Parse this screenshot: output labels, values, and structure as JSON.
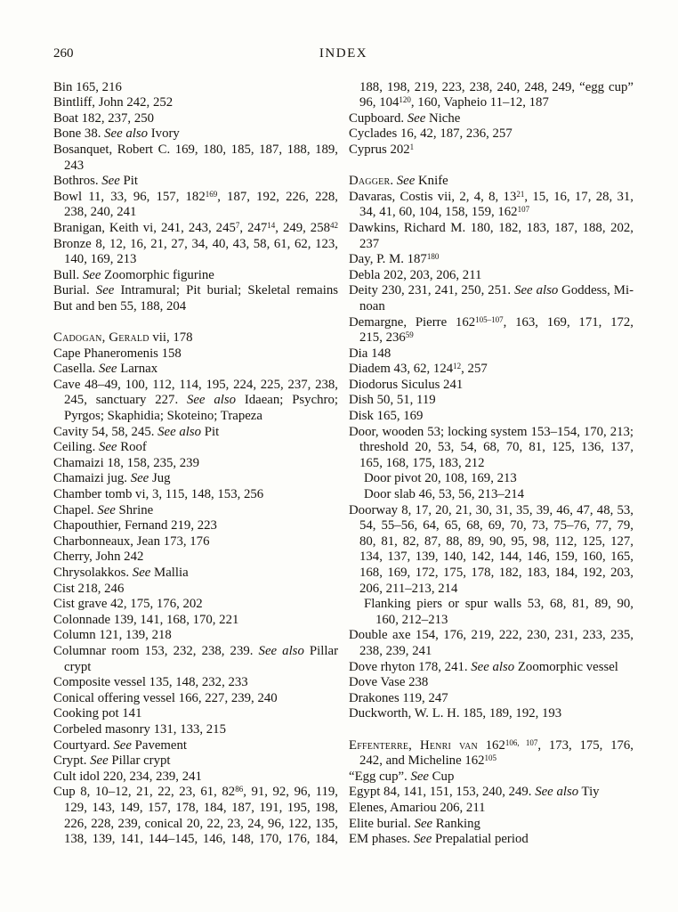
{
  "page": {
    "number": "260",
    "running_head": "INDEX"
  },
  "columns": {
    "left": [
      {
        "seg": [
          {
            "t": "Bin 165, 216"
          }
        ]
      },
      {
        "seg": [
          {
            "t": "Bintliff, John 242, 252"
          }
        ]
      },
      {
        "seg": [
          {
            "t": "Boat 182, 237, 250"
          }
        ]
      },
      {
        "seg": [
          {
            "t": "Bone 38. "
          },
          {
            "t": "See also",
            "s": "i"
          },
          {
            "t": " Ivory"
          }
        ]
      },
      {
        "j": true,
        "seg": [
          {
            "t": "Bosanquet, Robert C. 169, 180, 185, 187, 188, 189,"
          }
        ]
      },
      {
        "n": 1,
        "seg": [
          {
            "t": "243"
          }
        ]
      },
      {
        "seg": [
          {
            "t": "Bothros. "
          },
          {
            "t": "See",
            "s": "i"
          },
          {
            "t": " Pit"
          }
        ]
      },
      {
        "j": true,
        "seg": [
          {
            "t": "Bowl 11, 33, 96, 157, 182"
          },
          {
            "t": "169",
            "s": "p"
          },
          {
            "t": ", 187, 192, 226, 228,"
          }
        ]
      },
      {
        "n": 1,
        "seg": [
          {
            "t": "238, 240, 241"
          }
        ]
      },
      {
        "j": true,
        "seg": [
          {
            "t": "Branigan, Keith vi, 241, 243, 245"
          },
          {
            "t": "7",
            "s": "p"
          },
          {
            "t": ", 247"
          },
          {
            "t": "14",
            "s": "p"
          },
          {
            "t": ", 249, 258"
          },
          {
            "t": "42",
            "s": "p"
          }
        ]
      },
      {
        "j": true,
        "seg": [
          {
            "t": "Bronze 8, 12, 16, 21, 27, 34, 40, 43, 58, 61, 62, 123,"
          }
        ]
      },
      {
        "n": 1,
        "seg": [
          {
            "t": "140, 169, 213"
          }
        ]
      },
      {
        "seg": [
          {
            "t": "Bull. "
          },
          {
            "t": "See",
            "s": "i"
          },
          {
            "t": " Zoomorphic figurine"
          }
        ]
      },
      {
        "j": true,
        "seg": [
          {
            "t": "Burial. "
          },
          {
            "t": "See",
            "s": "i"
          },
          {
            "t": " Intramural; Pit burial; Skeletal remains"
          }
        ]
      },
      {
        "seg": [
          {
            "t": "But and ben 55, 188, 204"
          }
        ]
      },
      {
        "g": true,
        "seg": [
          {
            "t": "Cadogan, Gerald",
            "s": "c"
          },
          {
            "t": " vii, 178"
          }
        ]
      },
      {
        "seg": [
          {
            "t": "Cape Phaneromenis 158"
          }
        ]
      },
      {
        "seg": [
          {
            "t": "Casella. "
          },
          {
            "t": "See",
            "s": "i"
          },
          {
            "t": " Larnax"
          }
        ]
      },
      {
        "j": true,
        "seg": [
          {
            "t": "Cave 48–49, 100, 112, 114, 195, 224, 225, 237, 238,"
          }
        ]
      },
      {
        "n": 1,
        "j": true,
        "seg": [
          {
            "t": "245, sanctuary 227. "
          },
          {
            "t": "See also",
            "s": "i"
          },
          {
            "t": " Idaean; Psychro;"
          }
        ]
      },
      {
        "n": 1,
        "seg": [
          {
            "t": "Pyrgos; Skaphidia; Skoteino; Trapeza"
          }
        ]
      },
      {
        "seg": [
          {
            "t": "Cavity 54, 58, 245. "
          },
          {
            "t": "See also",
            "s": "i"
          },
          {
            "t": " Pit"
          }
        ]
      },
      {
        "seg": [
          {
            "t": "Ceiling. "
          },
          {
            "t": "See",
            "s": "i"
          },
          {
            "t": " Roof"
          }
        ]
      },
      {
        "seg": [
          {
            "t": "Chamaizi 18, 158, 235, 239"
          }
        ]
      },
      {
        "seg": [
          {
            "t": "Chamaizi jug. "
          },
          {
            "t": "See",
            "s": "i"
          },
          {
            "t": " Jug"
          }
        ]
      },
      {
        "seg": [
          {
            "t": "Chamber tomb vi, 3, 115, 148, 153, 256"
          }
        ]
      },
      {
        "seg": [
          {
            "t": "Chapel. "
          },
          {
            "t": "See",
            "s": "i"
          },
          {
            "t": " Shrine"
          }
        ]
      },
      {
        "seg": [
          {
            "t": "Chapouthier, Fernand 219, 223"
          }
        ]
      },
      {
        "seg": [
          {
            "t": "Charbonneaux, Jean 173, 176"
          }
        ]
      },
      {
        "seg": [
          {
            "t": "Cherry, John 242"
          }
        ]
      },
      {
        "seg": [
          {
            "t": "Chrysolakkos. "
          },
          {
            "t": "See",
            "s": "i"
          },
          {
            "t": " Mallia"
          }
        ]
      },
      {
        "seg": [
          {
            "t": "Cist 218, 246"
          }
        ]
      },
      {
        "seg": [
          {
            "t": "Cist grave 42, 175, 176, 202"
          }
        ]
      },
      {
        "seg": [
          {
            "t": "Colonnade 139, 141, 168, 170, 221"
          }
        ]
      },
      {
        "seg": [
          {
            "t": "Column 121, 139, 218"
          }
        ]
      },
      {
        "j": true,
        "seg": [
          {
            "t": "Columnar room 153, 232, 238, 239. "
          },
          {
            "t": "See also",
            "s": "i"
          },
          {
            "t": " Pillar"
          }
        ]
      },
      {
        "n": 1,
        "seg": [
          {
            "t": "crypt"
          }
        ]
      },
      {
        "seg": [
          {
            "t": "Composite vessel 135, 148, 232, 233"
          }
        ]
      },
      {
        "seg": [
          {
            "t": "Conical offering vessel 166, 227, 239, 240"
          }
        ]
      },
      {
        "seg": [
          {
            "t": "Cooking pot 141"
          }
        ]
      },
      {
        "seg": [
          {
            "t": "Corbeled masonry 131, 133, 215"
          }
        ]
      },
      {
        "seg": [
          {
            "t": "Courtyard. "
          },
          {
            "t": "See",
            "s": "i"
          },
          {
            "t": " Pavement"
          }
        ]
      },
      {
        "seg": [
          {
            "t": "Crypt. "
          },
          {
            "t": "See",
            "s": "i"
          },
          {
            "t": " Pillar crypt"
          }
        ]
      },
      {
        "seg": [
          {
            "t": "Cult idol 220, 234, 239, 241"
          }
        ]
      },
      {
        "j": true,
        "seg": [
          {
            "t": "Cup 8, 10–12, 21, 22, 23, 61, 82"
          },
          {
            "t": "86",
            "s": "p"
          },
          {
            "t": ", 91, 92, 96, 119,"
          }
        ]
      },
      {
        "n": 1,
        "j": true,
        "seg": [
          {
            "t": "129, 143, 149, 157, 178, 184, 187, 191, 195, 198,"
          }
        ]
      },
      {
        "n": 1,
        "j": true,
        "seg": [
          {
            "t": "226, 228, 239, conical 20, 22, 23, 24, 96, 122, 135,"
          }
        ]
      },
      {
        "n": 1,
        "j": true,
        "seg": [
          {
            "t": "138, 139, 141, 144–145, 146, 148, 170, 176, 184,"
          }
        ]
      }
    ],
    "right": [
      {
        "n": 1,
        "j": true,
        "seg": [
          {
            "t": "188, 198, 219, 223, 238, 240, 248, 249, “egg cup”"
          }
        ]
      },
      {
        "n": 1,
        "seg": [
          {
            "t": "96, 104"
          },
          {
            "t": "120",
            "s": "p"
          },
          {
            "t": ", 160, Vapheio 11–12, 187"
          }
        ]
      },
      {
        "seg": [
          {
            "t": "Cupboard. "
          },
          {
            "t": "See",
            "s": "i"
          },
          {
            "t": " Niche"
          }
        ]
      },
      {
        "seg": [
          {
            "t": "Cyclades 16, 42, 187, 236, 257"
          }
        ]
      },
      {
        "seg": [
          {
            "t": "Cyprus 202"
          },
          {
            "t": "1",
            "s": "p"
          }
        ]
      },
      {
        "g": true,
        "seg": [
          {
            "t": "Dagger",
            "s": "c"
          },
          {
            "t": ". "
          },
          {
            "t": "See",
            "s": "i"
          },
          {
            "t": " Knife"
          }
        ]
      },
      {
        "j": true,
        "seg": [
          {
            "t": "Davaras, Costis vii, 2, 4, 8, 13"
          },
          {
            "t": "21",
            "s": "p"
          },
          {
            "t": ", 15, 16, 17, 28, 31,"
          }
        ]
      },
      {
        "n": 1,
        "seg": [
          {
            "t": "34, 41, 60, 104, 158, 159, 162"
          },
          {
            "t": "107",
            "s": "p"
          }
        ]
      },
      {
        "j": true,
        "seg": [
          {
            "t": "Dawkins, Richard M. 180, 182, 183, 187, 188, 202,"
          }
        ]
      },
      {
        "n": 1,
        "seg": [
          {
            "t": "237"
          }
        ]
      },
      {
        "seg": [
          {
            "t": "Day, P. M. 187"
          },
          {
            "t": "180",
            "s": "p"
          }
        ]
      },
      {
        "seg": [
          {
            "t": "Debla 202, 203, 206, 211"
          }
        ]
      },
      {
        "j": true,
        "seg": [
          {
            "t": "Deity 230, 231, 241, 250, 251. "
          },
          {
            "t": "See also",
            "s": "i"
          },
          {
            "t": " Goddess, Mi-"
          }
        ]
      },
      {
        "n": 1,
        "seg": [
          {
            "t": "noan"
          }
        ]
      },
      {
        "j": true,
        "seg": [
          {
            "t": "Demargne, Pierre 162"
          },
          {
            "t": "105–107",
            "s": "p"
          },
          {
            "t": ", 163, 169, 171, 172,"
          }
        ]
      },
      {
        "n": 1,
        "seg": [
          {
            "t": "215, 236"
          },
          {
            "t": "59",
            "s": "p"
          }
        ]
      },
      {
        "seg": [
          {
            "t": "Dia 148"
          }
        ]
      },
      {
        "seg": [
          {
            "t": "Diadem 43, 62, 124"
          },
          {
            "t": "12",
            "s": "p"
          },
          {
            "t": ", 257"
          }
        ]
      },
      {
        "seg": [
          {
            "t": "Diodorus Siculus 241"
          }
        ]
      },
      {
        "seg": [
          {
            "t": "Dish 50, 51, 119"
          }
        ]
      },
      {
        "seg": [
          {
            "t": "Disk 165, 169"
          }
        ]
      },
      {
        "j": true,
        "seg": [
          {
            "t": "Door, wooden 53; locking system 153–154, 170, 213;"
          }
        ]
      },
      {
        "n": 1,
        "j": true,
        "seg": [
          {
            "t": "threshold 20, 53, 54, 68, 70, 81, 125, 136, 137,"
          }
        ]
      },
      {
        "n": 1,
        "seg": [
          {
            "t": "165, 168, 175, 183, 212"
          }
        ]
      },
      {
        "n": 2,
        "seg": [
          {
            "t": "Door pivot 20, 108, 169, 213"
          }
        ]
      },
      {
        "n": 2,
        "seg": [
          {
            "t": "Door slab 46, 53, 56, 213–214"
          }
        ]
      },
      {
        "j": true,
        "seg": [
          {
            "t": "Doorway 8, 17, 20, 21, 30, 31, 35, 39, 46, 47, 48, 53,"
          }
        ]
      },
      {
        "n": 1,
        "j": true,
        "seg": [
          {
            "t": "54, 55–56, 64, 65, 68, 69, 70, 73, 75–76, 77, 79,"
          }
        ]
      },
      {
        "n": 1,
        "j": true,
        "seg": [
          {
            "t": "80, 81, 82, 87, 88, 89, 90, 95, 98, 112, 125, 127,"
          }
        ]
      },
      {
        "n": 1,
        "j": true,
        "seg": [
          {
            "t": "134, 137, 139, 140, 142, 144, 146, 159, 160, 165,"
          }
        ]
      },
      {
        "n": 1,
        "j": true,
        "seg": [
          {
            "t": "168, 169, 172, 175, 178, 182, 183, 184, 192, 203,"
          }
        ]
      },
      {
        "n": 1,
        "seg": [
          {
            "t": "206, 211–213, 214"
          }
        ]
      },
      {
        "n": 2,
        "j": true,
        "seg": [
          {
            "t": "Flanking piers or spur walls 53, 68, 81, 89, 90,"
          }
        ]
      },
      {
        "n": 3,
        "seg": [
          {
            "t": "160, 212–213"
          }
        ]
      },
      {
        "j": true,
        "seg": [
          {
            "t": "Double axe 154, 176, 219, 222, 230, 231, 233, 235,"
          }
        ]
      },
      {
        "n": 1,
        "seg": [
          {
            "t": "238, 239, 241"
          }
        ]
      },
      {
        "seg": [
          {
            "t": "Dove rhyton 178, 241. "
          },
          {
            "t": "See also",
            "s": "i"
          },
          {
            "t": " Zoomorphic vessel"
          }
        ]
      },
      {
        "seg": [
          {
            "t": "Dove Vase 238"
          }
        ]
      },
      {
        "seg": [
          {
            "t": "Drakones 119, 247"
          }
        ]
      },
      {
        "seg": [
          {
            "t": "Duckworth, W. L. H. 185, 189, 192, 193"
          }
        ]
      },
      {
        "g": true,
        "j": true,
        "seg": [
          {
            "t": "Effenterre, Henri van",
            "s": "c"
          },
          {
            "t": " 162"
          },
          {
            "t": "106, 107",
            "s": "p"
          },
          {
            "t": ", 173, 175, 176,"
          }
        ]
      },
      {
        "n": 1,
        "seg": [
          {
            "t": "242, and Micheline 162"
          },
          {
            "t": "105",
            "s": "p"
          }
        ]
      },
      {
        "seg": [
          {
            "t": "“Egg cup”. "
          },
          {
            "t": "See",
            "s": "i"
          },
          {
            "t": " Cup"
          }
        ]
      },
      {
        "seg": [
          {
            "t": "Egypt 84, 141, 151, 153, 240, 249. "
          },
          {
            "t": "See also",
            "s": "i"
          },
          {
            "t": " Tiy"
          }
        ]
      },
      {
        "seg": [
          {
            "t": "Elenes, Amariou 206, 211"
          }
        ]
      },
      {
        "seg": [
          {
            "t": "Elite burial. "
          },
          {
            "t": "See",
            "s": "i"
          },
          {
            "t": " Ranking"
          }
        ]
      },
      {
        "seg": [
          {
            "t": "EM phases. "
          },
          {
            "t": "See",
            "s": "i"
          },
          {
            "t": " Prepalatial period"
          }
        ]
      }
    ]
  }
}
